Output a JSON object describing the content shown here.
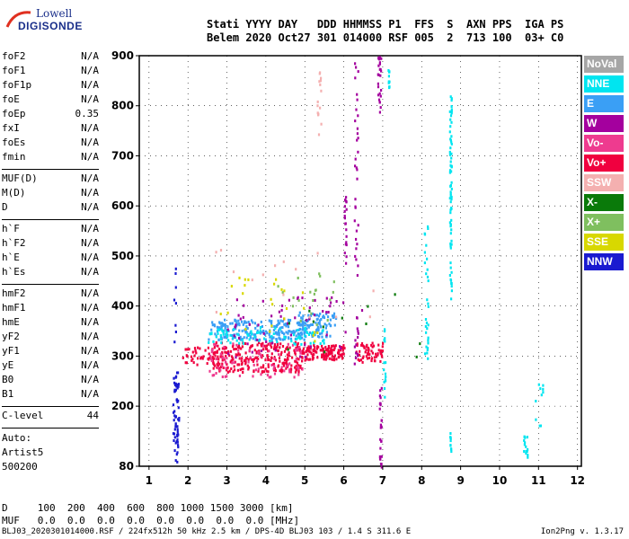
{
  "logo": {
    "line1": "Lowell",
    "line2": "DIGISONDE"
  },
  "header": {
    "line1": "Stati YYYY DAY   DDD HHMMSS P1  FFS  S  AXN PPS  IGA PS",
    "line2": "Belem 2020 Oct27 301 014000 RSF 005  2  713 100  03+ C0"
  },
  "params": {
    "group1": [
      {
        "name": "foF2",
        "value": "N/A"
      },
      {
        "name": "foF1",
        "value": "N/A"
      },
      {
        "name": "foF1p",
        "value": "N/A"
      },
      {
        "name": "foE",
        "value": "N/A"
      },
      {
        "name": "foEp",
        "value": "0.35"
      },
      {
        "name": "fxI",
        "value": "N/A"
      },
      {
        "name": "foEs",
        "value": "N/A"
      },
      {
        "name": "fmin",
        "value": "N/A"
      }
    ],
    "group2": [
      {
        "name": "MUF(D)",
        "value": "N/A"
      },
      {
        "name": "M(D)",
        "value": "N/A"
      },
      {
        "name": "D",
        "value": "N/A"
      }
    ],
    "group3": [
      {
        "name": "h`F",
        "value": "N/A"
      },
      {
        "name": "h`F2",
        "value": "N/A"
      },
      {
        "name": "h`E",
        "value": "N/A"
      },
      {
        "name": "h`Es",
        "value": "N/A"
      }
    ],
    "group4": [
      {
        "name": "hmF2",
        "value": "N/A"
      },
      {
        "name": "hmF1",
        "value": "N/A"
      },
      {
        "name": "hmE",
        "value": "N/A"
      },
      {
        "name": "yF2",
        "value": "N/A"
      },
      {
        "name": "yF1",
        "value": "N/A"
      },
      {
        "name": "yE",
        "value": "N/A"
      },
      {
        "name": "B0",
        "value": "N/A"
      },
      {
        "name": "B1",
        "value": "N/A"
      }
    ],
    "clevel": {
      "name": "C-level",
      "value": "44"
    }
  },
  "auto": {
    "line1": "Auto:",
    "line2": "Artist5",
    "line3": "500200"
  },
  "bottom": {
    "d_row": "D     100  200  400  600  800 1000 1500 3000 [km]",
    "muf_row": "MUF   0.0  0.0  0.0  0.0  0.0  0.0  0.0  0.0 [MHz]"
  },
  "footer": {
    "left": "BLJ03_2020301014000.RSF / 224fx512h 50 kHz 2.5 km / DPS-4D BLJ03 103 / 1.4 S 311.6 E",
    "right": "Ion2Png v. 1.3.17"
  },
  "legend": [
    {
      "label": "NoVal",
      "color": "#a6a6a6"
    },
    {
      "label": "NNE",
      "color": "#00e5f0"
    },
    {
      "label": "E",
      "color": "#3a9ff5"
    },
    {
      "label": "W",
      "color": "#a4009e"
    },
    {
      "label": "Vo-",
      "color": "#ee3b8f"
    },
    {
      "label": "Vo+",
      "color": "#f0003f"
    },
    {
      "label": "SSW",
      "color": "#f4b0b0"
    },
    {
      "label": "X-",
      "color": "#0a7a0a"
    },
    {
      "label": "X+",
      "color": "#7fbf5f"
    },
    {
      "label": "SSE",
      "color": "#d8d800"
    },
    {
      "label": "NNW",
      "color": "#1a1ad0"
    }
  ],
  "chart_data": {
    "type": "scatter",
    "title": "",
    "xlabel": "",
    "ylabel": "",
    "xlim": [
      0.75,
      12.1
    ],
    "ylim": [
      80,
      900
    ],
    "xticks": [
      1,
      2,
      3,
      4,
      5,
      6,
      7,
      8,
      9,
      10,
      11,
      12
    ],
    "yticks": [
      80,
      200,
      300,
      400,
      500,
      600,
      700,
      800,
      900
    ],
    "grid": true,
    "legend_placement": "right",
    "clusters": [
      {
        "series": "NNW",
        "x": [
          1.6,
          1.75
        ],
        "y": [
          90,
          270
        ],
        "n": 60
      },
      {
        "series": "NNW",
        "x": [
          1.6,
          1.7
        ],
        "y": [
          330,
          490
        ],
        "n": 8
      },
      {
        "series": "Vo+",
        "x": [
          1.8,
          3.0
        ],
        "y": [
          285,
          320
        ],
        "n": 50
      },
      {
        "series": "Vo+",
        "x": [
          2.6,
          5.0
        ],
        "y": [
          270,
          330
        ],
        "n": 260
      },
      {
        "series": "Vo+",
        "x": [
          5.0,
          6.0
        ],
        "y": [
          295,
          325
        ],
        "n": 120
      },
      {
        "series": "Vo+",
        "x": [
          6.3,
          7.0
        ],
        "y": [
          290,
          330
        ],
        "n": 60
      },
      {
        "series": "Vo-",
        "x": [
          2.5,
          5.0
        ],
        "y": [
          260,
          330
        ],
        "n": 80
      },
      {
        "series": "E",
        "x": [
          2.5,
          5.0
        ],
        "y": [
          335,
          375
        ],
        "n": 220
      },
      {
        "series": "E",
        "x": [
          4.8,
          5.8
        ],
        "y": [
          340,
          390
        ],
        "n": 90
      },
      {
        "series": "NNE",
        "x": [
          2.5,
          5.5
        ],
        "y": [
          325,
          360
        ],
        "n": 80
      },
      {
        "series": "W",
        "x": [
          3.0,
          6.5
        ],
        "y": [
          300,
          420
        ],
        "n": 60
      },
      {
        "series": "W",
        "x": [
          6.0,
          6.05
        ],
        "y": [
          480,
          620
        ],
        "n": 20
      },
      {
        "series": "W",
        "x": [
          6.25,
          6.35
        ],
        "y": [
          280,
          900
        ],
        "n": 45
      },
      {
        "series": "W",
        "x": [
          6.9,
          6.95
        ],
        "y": [
          80,
          240
        ],
        "n": 25
      },
      {
        "series": "W",
        "x": [
          6.85,
          6.95
        ],
        "y": [
          780,
          900
        ],
        "n": 25
      },
      {
        "series": "NNE",
        "x": [
          7.0,
          7.05
        ],
        "y": [
          220,
          360
        ],
        "n": 15
      },
      {
        "series": "NNE",
        "x": [
          7.1,
          7.15
        ],
        "y": [
          820,
          880
        ],
        "n": 10
      },
      {
        "series": "NNE",
        "x": [
          8.05,
          8.15
        ],
        "y": [
          280,
          590
        ],
        "n": 30
      },
      {
        "series": "NNE",
        "x": [
          8.7,
          8.75
        ],
        "y": [
          410,
          830
        ],
        "n": 70
      },
      {
        "series": "NNE",
        "x": [
          8.7,
          8.75
        ],
        "y": [
          110,
          150
        ],
        "n": 10
      },
      {
        "series": "NNE",
        "x": [
          10.6,
          10.7
        ],
        "y": [
          100,
          145
        ],
        "n": 15
      },
      {
        "series": "NNE",
        "x": [
          10.9,
          11.1
        ],
        "y": [
          150,
          250
        ],
        "n": 10
      },
      {
        "series": "SSE",
        "x": [
          2.8,
          5.3
        ],
        "y": [
          330,
          460
        ],
        "n": 25
      },
      {
        "series": "X+",
        "x": [
          4.0,
          6.0
        ],
        "y": [
          360,
          470
        ],
        "n": 20
      },
      {
        "series": "X-",
        "x": [
          4.5,
          8.0
        ],
        "y": [
          300,
          460
        ],
        "n": 12
      },
      {
        "series": "SSW",
        "x": [
          2.4,
          7.0
        ],
        "y": [
          380,
          560
        ],
        "n": 15
      },
      {
        "series": "SSW",
        "x": [
          5.3,
          5.4
        ],
        "y": [
          730,
          870
        ],
        "n": 15
      }
    ]
  }
}
